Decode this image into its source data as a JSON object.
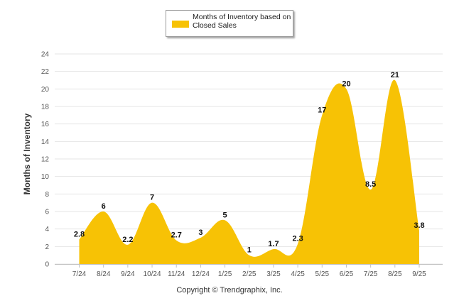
{
  "chart_data": {
    "type": "area",
    "title": "",
    "xlabel": "",
    "ylabel": "Months of Inventory",
    "ylim": [
      0,
      24
    ],
    "yticks": [
      0,
      2,
      4,
      6,
      8,
      10,
      12,
      14,
      16,
      18,
      20,
      22,
      24
    ],
    "categories": [
      "7/24",
      "8/24",
      "9/24",
      "10/24",
      "11/24",
      "12/24",
      "1/25",
      "2/25",
      "3/25",
      "4/25",
      "5/25",
      "6/25",
      "7/25",
      "8/25",
      "9/25"
    ],
    "series": [
      {
        "name": "Months of Inventory based on Closed Sales",
        "values": [
          2.8,
          6,
          2.2,
          7,
          2.7,
          3,
          5,
          1,
          1.7,
          2.3,
          17,
          20,
          8.5,
          21,
          3.8
        ],
        "labels": [
          "2.8",
          "6",
          "2.2",
          "7",
          "2.7",
          "3",
          "5",
          "1",
          "1.7",
          "2.3",
          "17",
          "20",
          "8.5",
          "21",
          "3.8"
        ]
      }
    ],
    "grid": true,
    "legend_position": "top-center"
  },
  "legend": {
    "label": "Months of Inventory based on Closed Sales"
  },
  "footer": {
    "copyright": "Copyright © Trendgraphix, Inc."
  },
  "colors": {
    "fill": "#F7C205",
    "grid": "#e6e6e6",
    "axis": "#c0c0c0",
    "text": "#333333"
  }
}
